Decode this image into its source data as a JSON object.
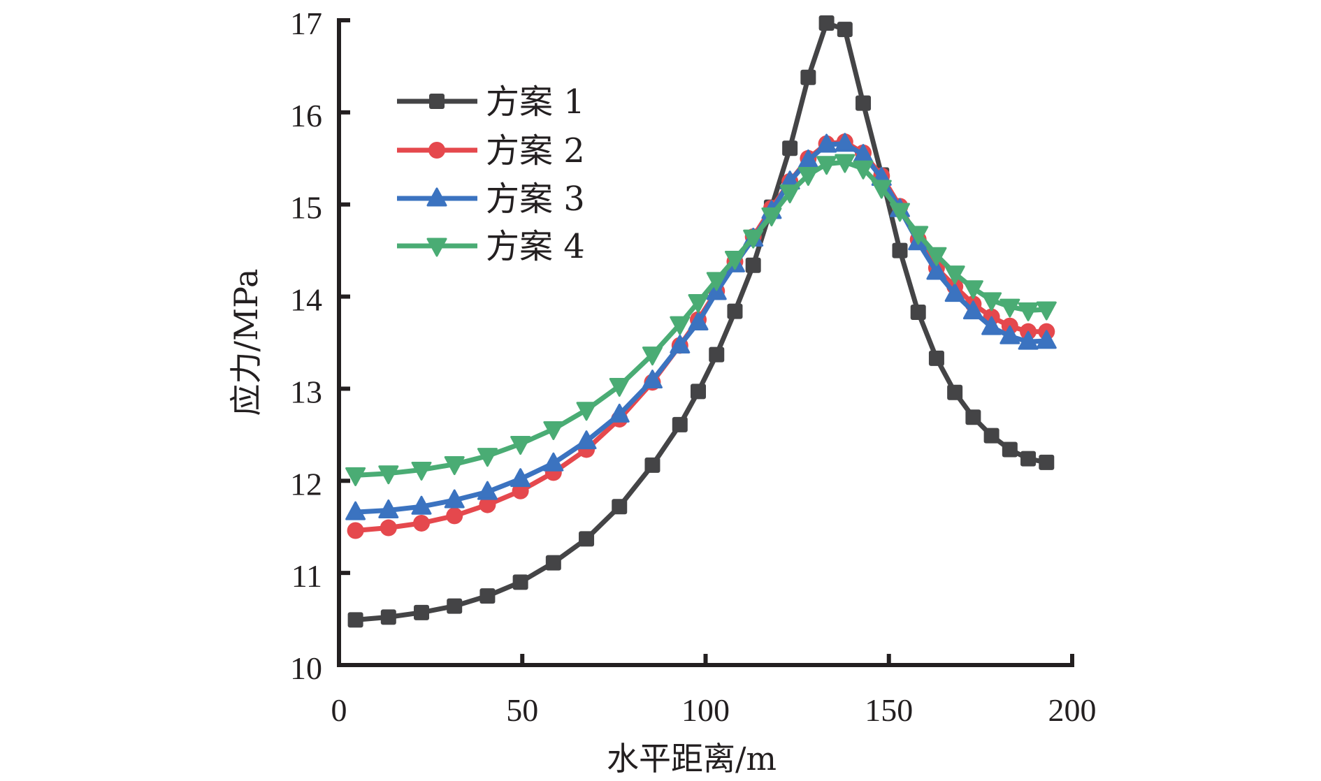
{
  "chart_data": {
    "type": "line",
    "title": "",
    "xlabel": "水平距离/m",
    "ylabel": "应力/MPa",
    "xlim": [
      0,
      200
    ],
    "ylim": [
      10,
      17
    ],
    "xticks": [
      "0",
      "50",
      "100",
      "150",
      "200"
    ],
    "yticks": [
      "10",
      "11",
      "12",
      "13",
      "14",
      "15",
      "16",
      "17"
    ],
    "grid": false,
    "legend_position": "top-left",
    "x": [
      4.5,
      13.5,
      22.5,
      31.5,
      40.5,
      49.5,
      58.5,
      67.5,
      76.5,
      85.5,
      93,
      98,
      103,
      108,
      113,
      118,
      123,
      128,
      133,
      138,
      143,
      148,
      153,
      158,
      163,
      168,
      173,
      178,
      183,
      188,
      193
    ],
    "series": [
      {
        "name": "方案 1",
        "color": "#444446",
        "marker": "square",
        "values": [
          10.49,
          10.52,
          10.57,
          10.64,
          10.75,
          10.9,
          11.11,
          11.37,
          11.72,
          12.17,
          12.61,
          12.97,
          13.37,
          13.84,
          14.34,
          14.97,
          15.61,
          16.38,
          16.97,
          16.9,
          16.1,
          15.32,
          14.5,
          13.83,
          13.33,
          12.96,
          12.69,
          12.49,
          12.34,
          12.24,
          12.2
        ]
      },
      {
        "name": "方案 2",
        "color": "#e5484d",
        "marker": "circle",
        "values": [
          11.46,
          11.49,
          11.54,
          11.62,
          11.74,
          11.89,
          12.09,
          12.34,
          12.67,
          13.07,
          13.47,
          13.75,
          14.06,
          14.38,
          14.65,
          14.96,
          15.25,
          15.5,
          15.66,
          15.68,
          15.56,
          15.31,
          14.98,
          14.62,
          14.31,
          14.11,
          13.92,
          13.78,
          13.68,
          13.62,
          13.62
        ]
      },
      {
        "name": "方案 3",
        "color": "#3b73c0",
        "marker": "triangle-up",
        "values": [
          11.66,
          11.68,
          11.72,
          11.79,
          11.88,
          12.02,
          12.19,
          12.43,
          12.72,
          13.09,
          13.47,
          13.72,
          14.05,
          14.35,
          14.63,
          14.93,
          15.25,
          15.48,
          15.65,
          15.66,
          15.54,
          15.29,
          14.95,
          14.59,
          14.27,
          14.03,
          13.84,
          13.67,
          13.57,
          13.51,
          13.52
        ]
      },
      {
        "name": "方案 4",
        "color": "#4aac74",
        "marker": "triangle-down",
        "values": [
          12.06,
          12.08,
          12.12,
          12.18,
          12.27,
          12.4,
          12.56,
          12.77,
          13.03,
          13.37,
          13.7,
          13.94,
          14.18,
          14.41,
          14.64,
          14.88,
          15.13,
          15.32,
          15.44,
          15.46,
          15.39,
          15.18,
          14.93,
          14.68,
          14.45,
          14.25,
          14.09,
          13.96,
          13.89,
          13.85,
          13.86
        ]
      }
    ]
  }
}
